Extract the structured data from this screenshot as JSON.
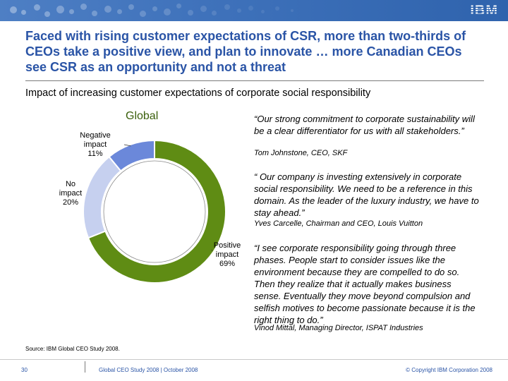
{
  "header": {
    "logo_text": "IBM",
    "colors": {
      "banner": "#3f72bb",
      "title": "#2a54a6"
    }
  },
  "headline": "Faced with rising customer expectations of CSR, more than two-thirds of CEOs take a positive view, and plan to innovate … more Canadian CEOs see CSR as an opportunity and not a threat",
  "subtitle": "Impact of increasing customer expectations of corporate social responsibility",
  "chart_data": {
    "type": "pie",
    "title": "Global",
    "donut": true,
    "slices": [
      {
        "label": "Positive impact",
        "label_line1": "Positive",
        "label_line2": "impact",
        "value": 69,
        "display": "69%",
        "color": "#5f8c14"
      },
      {
        "label": "No impact",
        "label_line1": "No",
        "label_line2": "impact",
        "value": 20,
        "display": "20%",
        "color": "#c6d0ef"
      },
      {
        "label": "Negative impact",
        "label_line1": "Negative",
        "label_line2": "impact",
        "value": 11,
        "display": "11%",
        "color": "#6b88da"
      }
    ]
  },
  "quotes": [
    {
      "text": "“Our strong commitment to corporate sustainability will be a clear differentiator for us with all stakeholders.”",
      "attribution": "Tom Johnstone, CEO, SKF"
    },
    {
      "text": "“ Our company is investing extensively in corporate social responsibility. We need to be a reference in this domain. As the leader of the luxury industry, we have to stay ahead.”",
      "attribution": "Yves Carcelle, Chairman and CEO, Louis Vuitton"
    },
    {
      "text": "“I see corporate responsibility going through three phases. People start to consider issues like the environment because they are compelled to do so. Then they realize that it actually makes business sense. Eventually they move beyond compulsion and selfish motives to become passionate because it is the right thing to do.”",
      "attribution": "Vinod Mittal, Managing Director, ISPAT Industries"
    }
  ],
  "footer": {
    "source": "Source: IBM Global CEO Study 2008.",
    "page_number": "30",
    "center_text": "Global CEO Study 2008 | October 2008",
    "copyright": "© Copyright IBM Corporation 2008"
  }
}
